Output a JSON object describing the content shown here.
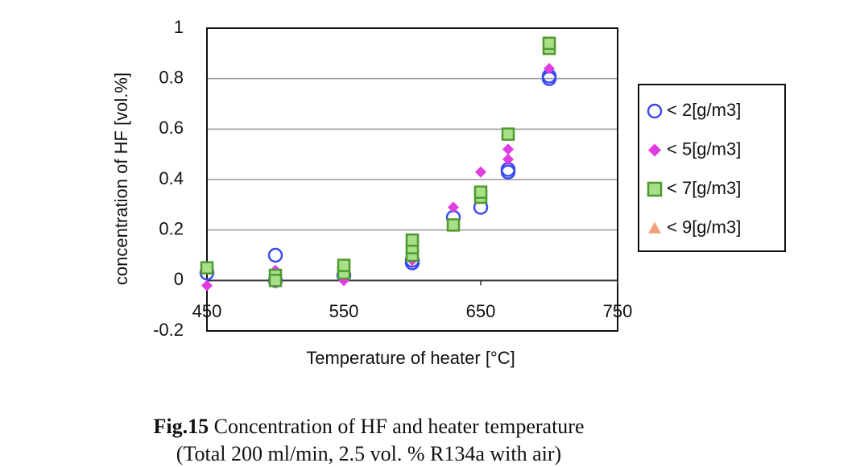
{
  "chart_data": {
    "type": "scatter",
    "xlabel": "Temperature of heater [°C]",
    "ylabel": "concentration of HF [vol.%]",
    "xlim": [
      450,
      750
    ],
    "xticks": [
      450,
      550,
      650,
      750
    ],
    "ylim": [
      -0.2,
      1
    ],
    "yticks": [
      -0.2,
      0,
      0.2,
      0.4,
      0.6,
      0.8,
      1
    ],
    "grid": true,
    "legend": "right",
    "series": [
      {
        "name": "< 2[g/m3]",
        "color": "#3b4cf0",
        "marker": "circle",
        "x": [
          450,
          500,
          500,
          550,
          600,
          600,
          630,
          650,
          670,
          670,
          700,
          700
        ],
        "values": [
          0.03,
          0.1,
          0.0,
          0.02,
          0.07,
          0.08,
          0.25,
          0.29,
          0.43,
          0.44,
          0.8,
          0.81
        ]
      },
      {
        "name": "< 5[g/m3]",
        "color": "#e03ce0",
        "marker": "diamond",
        "x": [
          450,
          500,
          500,
          550,
          550,
          600,
          630,
          650,
          670,
          670,
          700
        ],
        "values": [
          -0.02,
          0.04,
          -0.01,
          0.0,
          0.05,
          0.08,
          0.29,
          0.43,
          0.48,
          0.52,
          0.84
        ]
      },
      {
        "name": "< 7[g/m3]",
        "color": "#4f9a2e",
        "marker": "square",
        "x": [
          450,
          500,
          500,
          550,
          550,
          600,
          600,
          600,
          630,
          650,
          650,
          670,
          700,
          700
        ],
        "values": [
          0.05,
          0.02,
          0.0,
          0.03,
          0.06,
          0.1,
          0.13,
          0.16,
          0.22,
          0.33,
          0.35,
          0.58,
          0.92,
          0.94
        ]
      },
      {
        "name": "< 9[g/m3]",
        "color": "#f0a07a",
        "marker": "triangle",
        "x": [],
        "values": []
      }
    ]
  },
  "caption": {
    "label": "Fig.15",
    "text": "Concentration of HF and heater temperature",
    "note": "(Total 200 ml/min, 2.5 vol. % R134a with air)"
  }
}
